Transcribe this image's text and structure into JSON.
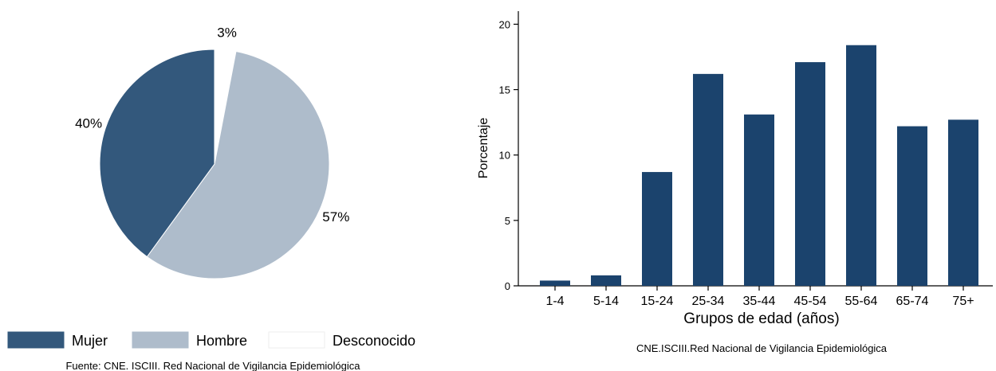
{
  "chart_data": [
    {
      "type": "pie",
      "slices": [
        {
          "label": "Desconocido",
          "value": 3,
          "color": "#ffffff",
          "pct_label": "3%"
        },
        {
          "label": "Hombre",
          "value": 57,
          "color": "#aebccb",
          "pct_label": "57%"
        },
        {
          "label": "Mujer",
          "value": 40,
          "color": "#33587c",
          "pct_label": "40%"
        }
      ],
      "legend": {
        "placement": "bottom",
        "items": [
          {
            "label": "Mujer",
            "color": "#33587c"
          },
          {
            "label": "Hombre",
            "color": "#aebccb"
          },
          {
            "label": "Desconocido",
            "color": "#ffffff"
          }
        ]
      },
      "source": "Fuente: CNE. ISCIII. Red Nacional de Vigilancia Epidemiológica"
    },
    {
      "type": "bar",
      "categories": [
        "1-4",
        "5-14",
        "15-24",
        "25-34",
        "35-44",
        "45-54",
        "55-64",
        "65-74",
        "75+"
      ],
      "values": [
        0.4,
        0.8,
        8.7,
        16.2,
        13.1,
        17.1,
        18.4,
        12.2,
        12.7
      ],
      "color": "#1b436d",
      "xlabel": "Grupos de edad (años)",
      "ylabel": "Porcentaje",
      "ylim": [
        0,
        21
      ],
      "yticks": [
        "0",
        "5",
        "10",
        "15",
        "20"
      ],
      "grid": false,
      "source": "CNE.ISCIII.Red Nacional de Vigilancia Epidemiológica"
    }
  ]
}
